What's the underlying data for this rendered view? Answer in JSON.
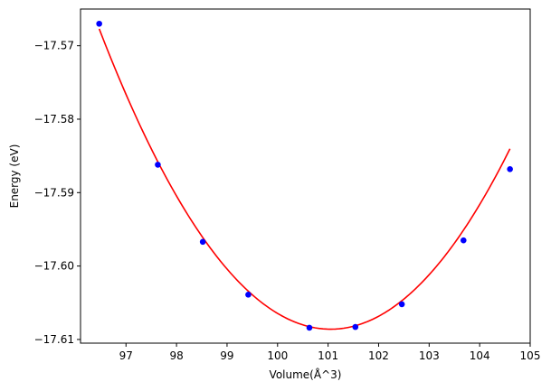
{
  "chart_data": {
    "type": "scatter",
    "title": "",
    "xlabel": "Volume(Å^3)",
    "ylabel": "Energy (eV)",
    "xlim": [
      96.1,
      105.0
    ],
    "ylim": [
      -17.6105,
      -17.565
    ],
    "xticks": [
      97,
      98,
      99,
      100,
      101,
      102,
      103,
      104,
      105
    ],
    "xtick_labels": [
      "97",
      "98",
      "99",
      "100",
      "101",
      "102",
      "103",
      "104",
      "105"
    ],
    "yticks": [
      -17.57,
      -17.58,
      -17.59,
      -17.6,
      -17.61
    ],
    "ytick_labels": [
      "−17.57",
      "−17.58",
      "−17.59",
      "−17.60",
      "−17.61"
    ],
    "grid": false,
    "series": [
      {
        "kind": "points",
        "color": "#0000ff",
        "x": [
          96.47,
          97.63,
          98.52,
          99.42,
          100.63,
          101.54,
          102.46,
          103.68,
          104.6
        ],
        "y": [
          -17.567,
          -17.5862,
          -17.5967,
          -17.6039,
          -17.6084,
          -17.6083,
          -17.6052,
          -17.5965,
          -17.5868
        ]
      },
      {
        "kind": "fit-curve",
        "color": "#ff0000",
        "fit_quadratic_vertex": [
          101.05,
          -17.6086
        ],
        "fit_quadratic_a": 0.00195,
        "x_range": [
          96.47,
          104.6
        ]
      }
    ]
  }
}
